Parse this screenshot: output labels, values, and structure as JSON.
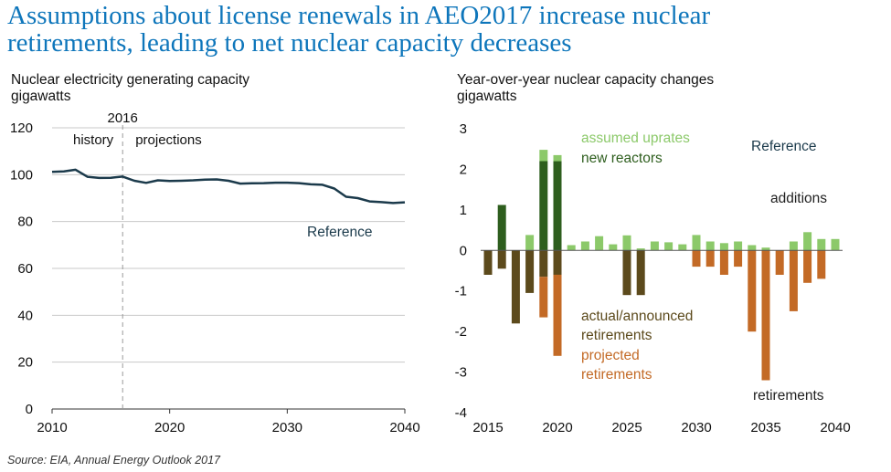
{
  "title_line1": "Assumptions about license renewals in AEO2017 increase nuclear",
  "title_line2": "retirements, leading to net nuclear capacity decreases",
  "source": "Source: EIA, Annual Energy Outlook 2017",
  "colors": {
    "title": "#0e76bb",
    "line": "#1b3a4b",
    "new_reactors": "#2e5e1e",
    "uprates": "#8cc96a",
    "actual_retirements": "#5c4a1c",
    "projected_retirements": "#c36a26",
    "grid": "#c8c8c8"
  },
  "chart_data": [
    {
      "type": "line",
      "title": "Nuclear electricity generating capacity",
      "ylabel": "gigawatts",
      "xlabel": "",
      "xlim": [
        2010,
        2040
      ],
      "ylim": [
        0,
        120
      ],
      "xticks": [
        2010,
        2020,
        2030,
        2040
      ],
      "yticks": [
        0,
        20,
        40,
        60,
        80,
        100,
        120
      ],
      "grid": "horizontal",
      "divider": {
        "year": 2016,
        "label": "2016",
        "left_label": "history",
        "right_label": "projections"
      },
      "annotations": [
        "Reference"
      ],
      "series": [
        {
          "name": "Reference",
          "x": [
            2010,
            2011,
            2012,
            2013,
            2014,
            2015,
            2016,
            2017,
            2018,
            2019,
            2020,
            2021,
            2022,
            2023,
            2024,
            2025,
            2026,
            2027,
            2028,
            2029,
            2030,
            2031,
            2032,
            2033,
            2034,
            2035,
            2036,
            2037,
            2038,
            2039,
            2040
          ],
          "y": [
            101.2,
            101.4,
            102.1,
            99.1,
            98.6,
            98.7,
            99.2,
            97.4,
            96.5,
            97.6,
            97.3,
            97.4,
            97.6,
            97.9,
            98.0,
            97.4,
            96.2,
            96.3,
            96.4,
            96.6,
            96.6,
            96.4,
            95.9,
            95.7,
            94.1,
            90.6,
            90.0,
            88.6,
            88.3,
            87.9,
            88.2
          ]
        }
      ]
    },
    {
      "type": "bar",
      "title": "Year-over-year nuclear capacity changes",
      "ylabel": "gigawatts",
      "xlabel": "",
      "xlim": [
        2015,
        2040
      ],
      "ylim": [
        -4,
        3
      ],
      "xticks": [
        2015,
        2020,
        2025,
        2030,
        2035,
        2040
      ],
      "yticks": [
        -4,
        -3,
        -2,
        -1,
        0,
        1,
        2,
        3
      ],
      "stacked": true,
      "annotations": [
        "assumed uprates",
        "new reactors",
        "Reference",
        "additions",
        "actual/announced",
        "retirements",
        "projected",
        "retirements",
        "retirements"
      ],
      "x": [
        2015,
        2016,
        2017,
        2018,
        2019,
        2020,
        2021,
        2022,
        2023,
        2024,
        2025,
        2026,
        2027,
        2028,
        2029,
        2030,
        2031,
        2032,
        2033,
        2034,
        2035,
        2036,
        2037,
        2038,
        2039,
        2040
      ],
      "series": [
        {
          "name": "new reactors",
          "values": [
            0,
            1.12,
            0,
            0,
            2.2,
            2.2,
            0,
            0,
            0,
            0,
            0,
            0,
            0,
            0,
            0,
            0,
            0,
            0,
            0,
            0,
            0,
            0,
            0,
            0,
            0,
            0
          ]
        },
        {
          "name": "assumed uprates",
          "values": [
            0,
            0,
            0,
            0.38,
            0.28,
            0.15,
            0.13,
            0.22,
            0.35,
            0.15,
            0.37,
            0.05,
            0.22,
            0.2,
            0.15,
            0.38,
            0.22,
            0.18,
            0.22,
            0.13,
            0.07,
            0,
            0.22,
            0.45,
            0.28,
            0.28
          ]
        },
        {
          "name": "actual/announced retirements",
          "values": [
            -0.6,
            -0.45,
            -1.8,
            -1.05,
            -0.65,
            -0.6,
            0,
            0,
            0,
            0,
            -1.1,
            -1.1,
            0,
            0,
            0,
            0,
            0,
            0,
            0,
            0,
            0,
            0,
            0,
            0,
            0,
            0
          ]
        },
        {
          "name": "projected retirements",
          "values": [
            0,
            0,
            0,
            0,
            -1.0,
            -2.0,
            0,
            0,
            0,
            0,
            0,
            0,
            0,
            0,
            0,
            -0.4,
            -0.4,
            -0.6,
            -0.4,
            -2.0,
            -3.2,
            -0.6,
            -1.5,
            -0.8,
            -0.7,
            0
          ]
        }
      ]
    }
  ]
}
